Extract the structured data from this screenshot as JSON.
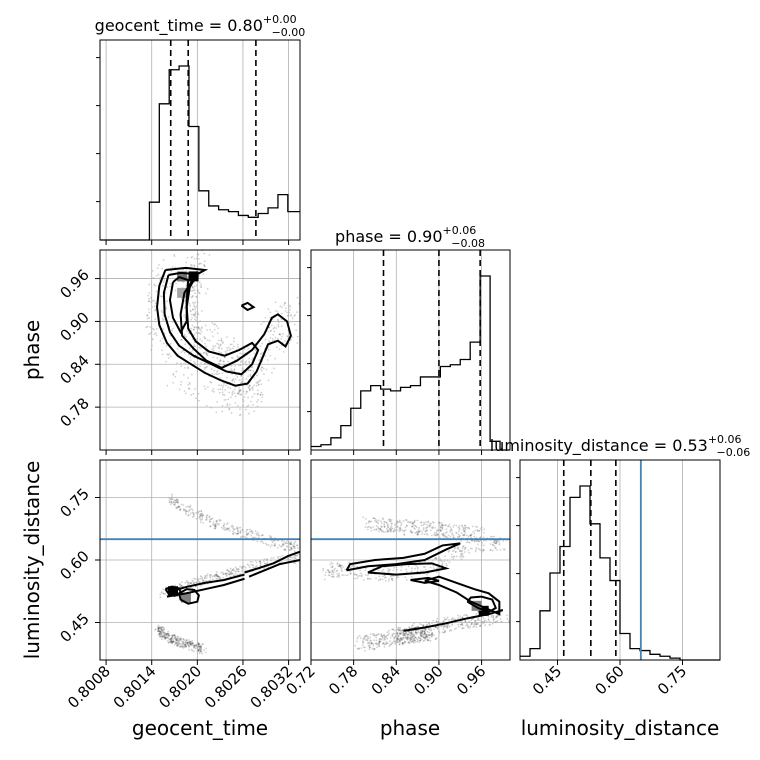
{
  "chart_data": {
    "type": "corner",
    "parameters": [
      "geocent_time",
      "phase",
      "luminosity_distance"
    ],
    "titles": {
      "geocent_time": {
        "name": "geocent_time",
        "median": "0.80",
        "plus": "+0.00",
        "minus": "−0.00"
      },
      "phase": {
        "name": "phase",
        "median": "0.90",
        "plus": "+0.06",
        "minus": "−0.08"
      },
      "luminosity_distance": {
        "name": "luminosity_distance",
        "median": "0.53",
        "plus": "+0.06",
        "minus": "−0.06"
      }
    },
    "axis_labels": {
      "geocent_time": "geocent_time",
      "phase": "phase",
      "luminosity_distance": "luminosity_distance"
    },
    "ranges": {
      "geocent_time": [
        0.80072,
        0.80335
      ],
      "phase": [
        0.72,
        1.0
      ],
      "luminosity_distance": [
        0.36,
        0.84
      ]
    },
    "ticks": {
      "geocent_time": [
        "0.8008",
        "0.8014",
        "0.8020",
        "0.8026",
        "0.8032"
      ],
      "phase": [
        "0.72",
        "0.78",
        "0.84",
        "0.90",
        "0.96"
      ],
      "phase_y": [
        "0.78",
        "0.84",
        "0.90",
        "0.96"
      ],
      "luminosity_distance": [
        "0.45",
        "0.60",
        "0.75"
      ],
      "luminosity_distance_y": [
        "0.45",
        "0.60",
        "0.75"
      ]
    },
    "quantiles": {
      "geocent_time": [
        0.80165,
        0.80188,
        0.80277
      ],
      "phase": [
        0.822,
        0.9,
        0.958
      ],
      "luminosity_distance": [
        0.465,
        0.53,
        0.59
      ]
    },
    "truth": {
      "luminosity_distance": 0.65
    },
    "hist_geocent_time": {
      "edges": [
        0.80072,
        0.80085,
        0.80098,
        0.80111,
        0.80124,
        0.80137,
        0.8015,
        0.80163,
        0.80176,
        0.80189,
        0.80202,
        0.80215,
        0.80228,
        0.80241,
        0.80254,
        0.80267,
        0.8028,
        0.80293,
        0.80306,
        0.80319,
        0.80335
      ],
      "counts": [
        0,
        0,
        0,
        0,
        0,
        0.2,
        0.72,
        0.9,
        0.92,
        0.6,
        0.26,
        0.18,
        0.16,
        0.15,
        0.13,
        0.12,
        0.14,
        0.17,
        0.24,
        0.15
      ]
    },
    "hist_phase": {
      "edges": [
        0.72,
        0.734,
        0.748,
        0.762,
        0.776,
        0.79,
        0.804,
        0.818,
        0.832,
        0.846,
        0.86,
        0.874,
        0.888,
        0.902,
        0.916,
        0.93,
        0.944,
        0.958,
        0.972,
        0.986,
        1.0
      ],
      "counts": [
        0.02,
        0.03,
        0.07,
        0.14,
        0.24,
        0.34,
        0.37,
        0.35,
        0.34,
        0.36,
        0.37,
        0.42,
        0.42,
        0.48,
        0.49,
        0.52,
        0.62,
        1.0,
        0.05,
        0.0
      ]
    },
    "hist_luminosity_distance": {
      "edges": [
        0.36,
        0.384,
        0.408,
        0.432,
        0.456,
        0.48,
        0.504,
        0.528,
        0.552,
        0.576,
        0.6,
        0.624,
        0.648,
        0.672,
        0.696,
        0.72,
        0.744,
        0.768,
        0.792,
        0.816,
        0.84
      ],
      "counts": [
        0.02,
        0.06,
        0.26,
        0.46,
        0.6,
        0.86,
        0.92,
        0.72,
        0.54,
        0.42,
        0.14,
        0.06,
        0.05,
        0.03,
        0.02,
        0.01,
        0.0,
        0.0,
        0.0,
        0.0
      ]
    },
    "scatter_gt_phase_paths": [
      [
        [
          0.80162,
          0.968
        ],
        [
          0.80148,
          0.946
        ],
        [
          0.80143,
          0.92
        ],
        [
          0.80148,
          0.89
        ],
        [
          0.80158,
          0.865
        ],
        [
          0.80172,
          0.845
        ],
        [
          0.80188,
          0.832
        ],
        [
          0.80205,
          0.82
        ],
        [
          0.80225,
          0.81
        ],
        [
          0.80245,
          0.802
        ],
        [
          0.80262,
          0.805
        ],
        [
          0.80275,
          0.82
        ],
        [
          0.80285,
          0.845
        ],
        [
          0.80295,
          0.87
        ],
        [
          0.80305,
          0.89
        ],
        [
          0.80318,
          0.9
        ],
        [
          0.80332,
          0.905
        ]
      ],
      [
        [
          0.80205,
          0.97
        ],
        [
          0.80195,
          0.955
        ],
        [
          0.80188,
          0.93
        ],
        [
          0.80192,
          0.9
        ],
        [
          0.80205,
          0.875
        ],
        [
          0.80222,
          0.855
        ],
        [
          0.80242,
          0.838
        ],
        [
          0.8026,
          0.828
        ],
        [
          0.80275,
          0.835
        ]
      ]
    ],
    "scatter_gt_ld_paths": [
      [
        [
          0.80162,
          0.75
        ],
        [
          0.80178,
          0.73
        ],
        [
          0.80198,
          0.71
        ],
        [
          0.8022,
          0.69
        ],
        [
          0.80245,
          0.675
        ],
        [
          0.8027,
          0.66
        ],
        [
          0.80295,
          0.645
        ],
        [
          0.80318,
          0.635
        ],
        [
          0.80332,
          0.63
        ]
      ],
      [
        [
          0.80148,
          0.435
        ],
        [
          0.80155,
          0.42
        ],
        [
          0.80168,
          0.41
        ],
        [
          0.80182,
          0.4
        ],
        [
          0.80198,
          0.39
        ],
        [
          0.80208,
          0.385
        ]
      ],
      [
        [
          0.80155,
          0.52
        ],
        [
          0.80175,
          0.53
        ],
        [
          0.80195,
          0.545
        ],
        [
          0.80215,
          0.555
        ],
        [
          0.80238,
          0.565
        ],
        [
          0.8026,
          0.575
        ],
        [
          0.80282,
          0.59
        ],
        [
          0.80305,
          0.6
        ],
        [
          0.80332,
          0.605
        ]
      ]
    ],
    "scatter_ph_ld_paths": [
      [
        [
          0.74,
          0.57
        ],
        [
          0.76,
          0.58
        ],
        [
          0.79,
          0.57
        ],
        [
          0.83,
          0.565
        ],
        [
          0.87,
          0.575
        ],
        [
          0.91,
          0.6
        ],
        [
          0.94,
          0.63
        ],
        [
          0.97,
          0.64
        ],
        [
          0.99,
          0.64
        ]
      ],
      [
        [
          0.84,
          0.42
        ],
        [
          0.87,
          0.43
        ],
        [
          0.9,
          0.44
        ],
        [
          0.93,
          0.45
        ],
        [
          0.96,
          0.46
        ],
        [
          0.99,
          0.47
        ]
      ],
      [
        [
          0.79,
          0.4
        ],
        [
          0.83,
          0.41
        ],
        [
          0.86,
          0.42
        ],
        [
          0.89,
          0.425
        ]
      ],
      [
        [
          0.8,
          0.685
        ],
        [
          0.84,
          0.68
        ],
        [
          0.88,
          0.675
        ],
        [
          0.92,
          0.67
        ],
        [
          0.96,
          0.66
        ]
      ]
    ],
    "contours_gt_phase": [
      [
        [
          0.80158,
          0.972
        ],
        [
          0.8015,
          0.95
        ],
        [
          0.80147,
          0.92
        ],
        [
          0.8015,
          0.895
        ],
        [
          0.8016,
          0.87
        ],
        [
          0.80174,
          0.852
        ],
        [
          0.80192,
          0.84
        ],
        [
          0.8021,
          0.828
        ],
        [
          0.8023,
          0.818
        ],
        [
          0.8025,
          0.81
        ],
        [
          0.80266,
          0.813
        ],
        [
          0.80278,
          0.83
        ],
        [
          0.80286,
          0.85
        ],
        [
          0.80293,
          0.868
        ],
        [
          0.80306,
          0.873
        ],
        [
          0.80316,
          0.865
        ],
        [
          0.80323,
          0.88
        ],
        [
          0.80318,
          0.9
        ],
        [
          0.80306,
          0.91
        ],
        [
          0.80298,
          0.905
        ],
        [
          0.80288,
          0.882
        ],
        [
          0.80272,
          0.86
        ],
        [
          0.80252,
          0.845
        ],
        [
          0.80232,
          0.835
        ],
        [
          0.80212,
          0.845
        ],
        [
          0.80195,
          0.862
        ],
        [
          0.8018,
          0.88
        ],
        [
          0.80178,
          0.91
        ],
        [
          0.80183,
          0.94
        ],
        [
          0.80198,
          0.965
        ],
        [
          0.8021,
          0.972
        ],
        [
          0.80185,
          0.975
        ],
        [
          0.80158,
          0.972
        ]
      ],
      [
        [
          0.80162,
          0.965
        ],
        [
          0.80156,
          0.94
        ],
        [
          0.80157,
          0.91
        ],
        [
          0.80164,
          0.885
        ],
        [
          0.80176,
          0.866
        ],
        [
          0.80195,
          0.852
        ],
        [
          0.80215,
          0.842
        ],
        [
          0.80238,
          0.83
        ],
        [
          0.80258,
          0.826
        ],
        [
          0.80272,
          0.84
        ],
        [
          0.8028,
          0.86
        ],
        [
          0.80272,
          0.87
        ],
        [
          0.80255,
          0.86
        ],
        [
          0.80236,
          0.852
        ],
        [
          0.80215,
          0.858
        ],
        [
          0.80198,
          0.872
        ],
        [
          0.80188,
          0.89
        ],
        [
          0.80186,
          0.92
        ],
        [
          0.8019,
          0.948
        ],
        [
          0.802,
          0.966
        ],
        [
          0.80178,
          0.968
        ],
        [
          0.80162,
          0.965
        ]
      ],
      [
        [
          0.80168,
          0.955
        ],
        [
          0.80164,
          0.93
        ],
        [
          0.80168,
          0.905
        ],
        [
          0.80178,
          0.885
        ],
        [
          0.80186,
          0.9
        ],
        [
          0.80186,
          0.93
        ],
        [
          0.80188,
          0.958
        ],
        [
          0.80176,
          0.962
        ],
        [
          0.80168,
          0.955
        ]
      ],
      [
        [
          0.80258,
          0.922
        ],
        [
          0.80266,
          0.916
        ],
        [
          0.80274,
          0.92
        ],
        [
          0.80266,
          0.926
        ],
        [
          0.80258,
          0.922
        ]
      ]
    ],
    "contours_gt_ld": [
      [
        [
          0.80262,
          0.57
        ],
        [
          0.8028,
          0.58
        ],
        [
          0.803,
          0.592
        ],
        [
          0.8032,
          0.61
        ],
        [
          0.80335,
          0.62
        ]
      ],
      [
        [
          0.80268,
          0.56
        ],
        [
          0.80288,
          0.575
        ],
        [
          0.80308,
          0.59
        ],
        [
          0.80335,
          0.6
        ]
      ],
      [
        [
          0.80165,
          0.525
        ],
        [
          0.80185,
          0.535
        ],
        [
          0.8021,
          0.545
        ],
        [
          0.80235,
          0.552
        ],
        [
          0.80262,
          0.565
        ]
      ],
      [
        [
          0.8016,
          0.512
        ],
        [
          0.80185,
          0.52
        ],
        [
          0.8021,
          0.53
        ],
        [
          0.80235,
          0.54
        ],
        [
          0.80262,
          0.555
        ]
      ],
      [
        [
          0.80158,
          0.53
        ],
        [
          0.80162,
          0.52
        ],
        [
          0.8017,
          0.514
        ],
        [
          0.80178,
          0.522
        ],
        [
          0.80176,
          0.532
        ],
        [
          0.80166,
          0.536
        ],
        [
          0.80158,
          0.53
        ]
      ],
      [
        [
          0.80176,
          0.52
        ],
        [
          0.80178,
          0.505
        ],
        [
          0.80188,
          0.495
        ],
        [
          0.802,
          0.5
        ],
        [
          0.80202,
          0.515
        ],
        [
          0.80196,
          0.528
        ],
        [
          0.80186,
          0.53
        ],
        [
          0.80176,
          0.52
        ]
      ]
    ],
    "contours_ph_ld": [
      [
        [
          0.77,
          0.575
        ],
        [
          0.8,
          0.585
        ],
        [
          0.84,
          0.59
        ],
        [
          0.88,
          0.6
        ],
        [
          0.91,
          0.625
        ],
        [
          0.93,
          0.64
        ],
        [
          0.905,
          0.635
        ],
        [
          0.88,
          0.615
        ],
        [
          0.85,
          0.605
        ],
        [
          0.81,
          0.6
        ],
        [
          0.775,
          0.59
        ],
        [
          0.77,
          0.575
        ]
      ],
      [
        [
          0.8,
          0.57
        ],
        [
          0.84,
          0.565
        ],
        [
          0.88,
          0.57
        ],
        [
          0.91,
          0.58
        ],
        [
          0.89,
          0.592
        ],
        [
          0.855,
          0.59
        ],
        [
          0.82,
          0.585
        ],
        [
          0.8,
          0.57
        ]
      ],
      [
        [
          0.86,
          0.552
        ],
        [
          0.88,
          0.545
        ],
        [
          0.9,
          0.55
        ],
        [
          0.885,
          0.557
        ],
        [
          0.86,
          0.552
        ]
      ],
      [
        [
          0.88,
          0.55
        ],
        [
          0.9,
          0.54
        ],
        [
          0.925,
          0.522
        ],
        [
          0.945,
          0.5
        ],
        [
          0.965,
          0.485
        ],
        [
          0.985,
          0.47
        ],
        [
          0.985,
          0.5
        ],
        [
          0.97,
          0.52
        ],
        [
          0.95,
          0.53
        ],
        [
          0.925,
          0.545
        ],
        [
          0.9,
          0.56
        ],
        [
          0.88,
          0.55
        ]
      ],
      [
        [
          0.94,
          0.5
        ],
        [
          0.955,
          0.485
        ],
        [
          0.97,
          0.475
        ],
        [
          0.98,
          0.485
        ],
        [
          0.975,
          0.505
        ],
        [
          0.96,
          0.512
        ],
        [
          0.945,
          0.51
        ],
        [
          0.94,
          0.5
        ]
      ],
      [
        [
          0.85,
          0.43
        ],
        [
          0.88,
          0.438
        ],
        [
          0.91,
          0.448
        ],
        [
          0.94,
          0.46
        ],
        [
          0.97,
          0.47
        ],
        [
          0.99,
          0.48
        ]
      ]
    ],
    "density_peaks": {
      "gt_phase": [
        [
          0.80195,
          0.963,
          1.0
        ],
        [
          0.8018,
          0.963,
          0.55
        ],
        [
          0.8018,
          0.94,
          0.35
        ]
      ],
      "gt_ld": [
        [
          0.80168,
          0.525,
          1.0
        ],
        [
          0.80185,
          0.51,
          0.5
        ]
      ],
      "ph_ld": [
        [
          0.963,
          0.478,
          1.0
        ],
        [
          0.953,
          0.49,
          0.5
        ]
      ]
    }
  }
}
